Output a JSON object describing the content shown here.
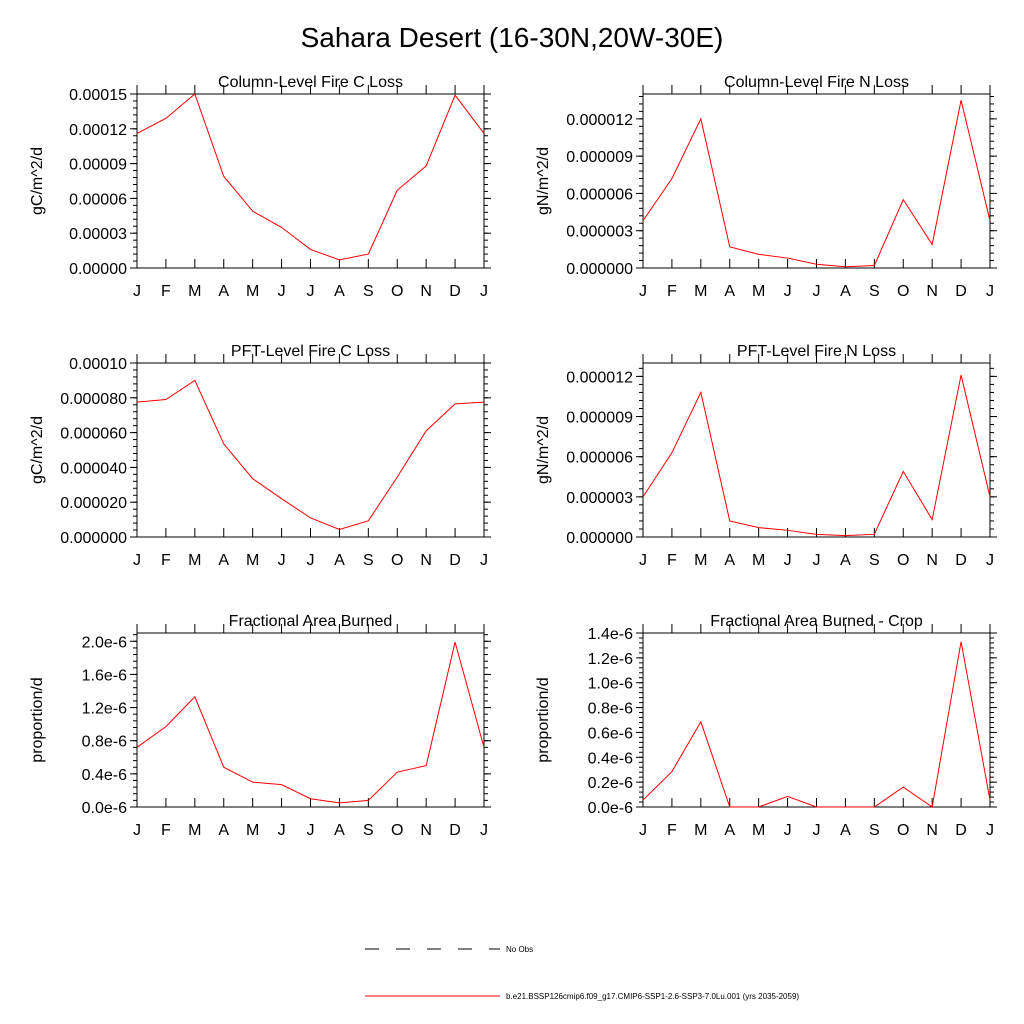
{
  "page_title": "Sahara Desert (16-30N,20W-30E)",
  "legend": {
    "entries": [
      {
        "label": "No Obs",
        "style": "dashed",
        "color": "#000000"
      },
      {
        "label": "b.e21.BSSP126cmip6.f09_g17.CMIP6-SSP1-2.6-SSP3-7.0Lu.001 (yrs 2035-2059)",
        "style": "solid",
        "color": "#ff0000"
      }
    ]
  },
  "chart_data": [
    {
      "type": "line",
      "title": "Column-Level Fire C Loss",
      "ylabel": "gC/m^2/d",
      "categories": [
        "J",
        "F",
        "M",
        "A",
        "M",
        "J",
        "J",
        "A",
        "S",
        "O",
        "N",
        "D",
        "J"
      ],
      "ylim": [
        0,
        0.00015
      ],
      "yticks": [
        0,
        3e-05,
        6e-05,
        9e-05,
        0.00012,
        0.00015
      ],
      "ytick_labels": [
        "0.00000",
        "0.00003",
        "0.00006",
        "0.00009",
        "0.00012",
        "0.00015"
      ],
      "series": [
        {
          "color": "#ff0000",
          "values": [
            0.000116,
            0.000129,
            0.00015,
            7.9e-05,
            4.9e-05,
            3.5e-05,
            1.6e-05,
            7e-06,
            1.2e-05,
            6.7e-05,
            8.8e-05,
            0.000149,
            0.000116
          ]
        }
      ]
    },
    {
      "type": "line",
      "title": "Column-Level Fire N Loss",
      "ylabel": "gN/m^2/d",
      "categories": [
        "J",
        "F",
        "M",
        "A",
        "M",
        "J",
        "J",
        "A",
        "S",
        "O",
        "N",
        "D",
        "J"
      ],
      "ylim": [
        0,
        1.4e-05
      ],
      "yticks": [
        0,
        3e-06,
        6e-06,
        9e-06,
        1.2e-05
      ],
      "ytick_labels": [
        "0.000000",
        "0.000003",
        "0.000006",
        "0.000009",
        "0.000012"
      ],
      "series": [
        {
          "color": "#ff0000",
          "values": [
            3.8e-06,
            7.2e-06,
            1.2e-05,
            1.7e-06,
            1.1e-06,
            8e-07,
            3e-07,
            1e-07,
            2e-07,
            5.5e-06,
            1.9e-06,
            1.35e-05,
            3.8e-06
          ]
        }
      ]
    },
    {
      "type": "line",
      "title": "PFT-Level Fire C Loss",
      "ylabel": "gC/m^2/d",
      "categories": [
        "J",
        "F",
        "M",
        "A",
        "M",
        "J",
        "J",
        "A",
        "S",
        "O",
        "N",
        "D",
        "J"
      ],
      "ylim": [
        0,
        0.0001
      ],
      "yticks": [
        0,
        2e-05,
        4e-05,
        6e-05,
        8e-05,
        0.0001
      ],
      "ytick_labels": [
        "0.000000",
        "0.000020",
        "0.000040",
        "0.000060",
        "0.000080",
        "0.00010"
      ],
      "series": [
        {
          "color": "#ff0000",
          "values": [
            7.75e-05,
            7.9e-05,
            9e-05,
            5.35e-05,
            3.35e-05,
            2.2e-05,
            1.1e-05,
            4.3e-06,
            9.3e-06,
            3.45e-05,
            6.1e-05,
            7.65e-05,
            7.75e-05
          ]
        }
      ]
    },
    {
      "type": "line",
      "title": "PFT-Level Fire N Loss",
      "ylabel": "gN/m^2/d",
      "categories": [
        "J",
        "F",
        "M",
        "A",
        "M",
        "J",
        "J",
        "A",
        "S",
        "O",
        "N",
        "D",
        "J"
      ],
      "ylim": [
        0,
        1.3e-05
      ],
      "yticks": [
        0,
        3e-06,
        6e-06,
        9e-06,
        1.2e-05
      ],
      "ytick_labels": [
        "0.000000",
        "0.000003",
        "0.000006",
        "0.000009",
        "0.000012"
      ],
      "series": [
        {
          "color": "#ff0000",
          "values": [
            3e-06,
            6.3e-06,
            1.08e-05,
            1.2e-06,
            7e-07,
            5e-07,
            2e-07,
            1e-07,
            2e-07,
            4.9e-06,
            1.3e-06,
            1.21e-05,
            3e-06
          ]
        }
      ]
    },
    {
      "type": "line",
      "title": "Fractional Area Burned",
      "ylabel": "proportion/d",
      "categories": [
        "J",
        "F",
        "M",
        "A",
        "M",
        "J",
        "J",
        "A",
        "S",
        "O",
        "N",
        "D",
        "J"
      ],
      "ylim": [
        0,
        2.1e-06
      ],
      "yticks": [
        0,
        4e-07,
        8e-07,
        1.2e-06,
        1.6e-06,
        2e-06
      ],
      "ytick_labels": [
        "0.0e-6",
        "0.4e-6",
        "0.8e-6",
        "1.2e-6",
        "1.6e-6",
        "2.0e-6"
      ],
      "series": [
        {
          "color": "#ff0000",
          "values": [
            7.2e-07,
            9.7e-07,
            1.33e-06,
            4.8e-07,
            3e-07,
            2.7e-07,
            1e-07,
            5e-08,
            8e-08,
            4.2e-07,
            5e-07,
            1.99e-06,
            7.2e-07
          ]
        }
      ]
    },
    {
      "type": "line",
      "title": "Fractional Area Burned - Crop",
      "ylabel": "proportion/d",
      "categories": [
        "J",
        "F",
        "M",
        "A",
        "M",
        "J",
        "J",
        "A",
        "S",
        "O",
        "N",
        "D",
        "J"
      ],
      "ylim": [
        0,
        1.4e-06
      ],
      "yticks": [
        0,
        2e-07,
        4e-07,
        6e-07,
        8e-07,
        1e-06,
        1.2e-06,
        1.4e-06
      ],
      "ytick_labels": [
        "0.0e-6",
        "0.2e-6",
        "0.4e-6",
        "0.6e-6",
        "0.8e-6",
        "1.0e-6",
        "1.2e-6",
        "1.4e-6"
      ],
      "series": [
        {
          "color": "#ff0000",
          "values": [
            5.5e-08,
            2.85e-07,
            6.85e-07,
            0,
            0,
            8.5e-08,
            0,
            0,
            0,
            1.6e-07,
            0,
            1.33e-06,
            5.5e-08
          ]
        }
      ]
    }
  ]
}
